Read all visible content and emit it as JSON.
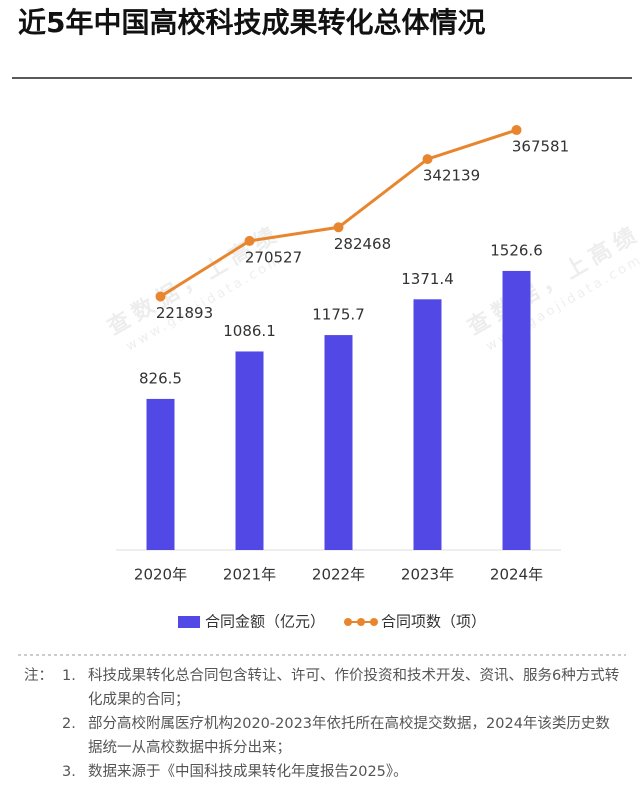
{
  "chart_data": {
    "type": "bar-line",
    "title": "近5年中国高校科技成果转化总体情况",
    "categories": [
      "2020年",
      "2021年",
      "2022年",
      "2023年",
      "2024年"
    ],
    "series": [
      {
        "name": "合同金额（亿元）",
        "color": "#5248e6",
        "type": "bar",
        "axis": "y",
        "values": [
          826.5,
          1086.1,
          1175.7,
          1371.4,
          1526.6
        ]
      },
      {
        "name": "合同项数（项）",
        "color": "#e8862f",
        "type": "line",
        "axis": "y2",
        "values": [
          221893,
          270527,
          282468,
          342139,
          367581
        ]
      }
    ],
    "ylim": [
      0,
      2500
    ],
    "y2lim": [
      0,
      400000
    ],
    "watermark": [
      "查数据，上高绩",
      "www.gaojidata.com"
    ]
  },
  "notes": {
    "label": "注：",
    "items": [
      {
        "num": "1.",
        "text": "科技成果转化总合同包含转让、许可、作价投资和技术开发、资讯、服务6种方式转化成果的合同；"
      },
      {
        "num": "2.",
        "text": "部分高校附属医疗机构2020-2023年依托所在高校提交数据，2024年该类历史数据统一从高校数据中拆分出来；"
      },
      {
        "num": "3.",
        "text": "数据来源于《中国科技成果转化年度报告2025》。"
      }
    ]
  }
}
